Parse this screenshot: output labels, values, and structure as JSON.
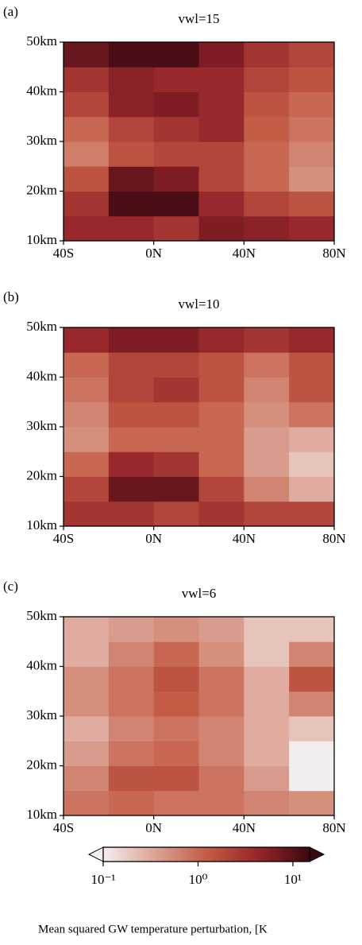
{
  "chart_data": [
    {
      "type": "heatmap",
      "panel_label": "(a)",
      "title": "vwl=15",
      "x": [
        -30,
        -10,
        10,
        30,
        50,
        70
      ],
      "y": [
        12.5,
        17.5,
        22.5,
        27.5,
        32.5,
        37.5,
        42.5,
        47.5
      ],
      "z": [
        [
          4,
          4,
          3,
          6,
          5,
          4
        ],
        [
          3,
          12,
          12,
          4,
          2,
          1.5
        ],
        [
          1.5,
          8,
          6,
          2,
          1,
          0.5
        ],
        [
          0.7,
          1.5,
          2,
          2,
          1,
          0.6
        ],
        [
          1,
          2,
          3,
          4,
          1.2,
          0.8
        ],
        [
          2,
          5,
          6,
          4,
          1.5,
          1
        ],
        [
          3,
          5,
          4,
          4,
          2,
          1.5
        ],
        [
          8,
          12,
          12,
          6,
          3,
          2
        ]
      ],
      "xlim": [
        -40,
        80
      ],
      "ylim": [
        10,
        50
      ],
      "xticks": [
        {
          "value": -40,
          "label": "40S"
        },
        {
          "value": 0,
          "label": "0N"
        },
        {
          "value": 40,
          "label": "40N"
        },
        {
          "value": 80,
          "label": "80N"
        }
      ],
      "yticks": [
        {
          "value": 10,
          "label": "10km"
        },
        {
          "value": 20,
          "label": "20km"
        },
        {
          "value": 30,
          "label": "30km"
        },
        {
          "value": 40,
          "label": "40km"
        },
        {
          "value": 50,
          "label": "50km"
        }
      ]
    },
    {
      "type": "heatmap",
      "panel_label": "(b)",
      "title": "vwl=10",
      "x": [
        -30,
        -10,
        10,
        30,
        50,
        70
      ],
      "y": [
        12.5,
        17.5,
        22.5,
        27.5,
        32.5,
        37.5,
        42.5,
        47.5
      ],
      "z": [
        [
          3,
          3,
          2,
          3,
          2,
          2
        ],
        [
          2,
          8,
          8,
          2,
          0.6,
          0.3
        ],
        [
          1,
          4,
          3,
          1,
          0.4,
          0.2
        ],
        [
          0.5,
          1,
          1,
          1,
          0.4,
          0.3
        ],
        [
          0.6,
          1.5,
          1.5,
          1,
          0.5,
          0.8
        ],
        [
          0.8,
          2,
          3,
          1.5,
          0.6,
          1.5
        ],
        [
          1,
          2,
          2,
          1.5,
          0.8,
          1.5
        ],
        [
          4,
          6,
          6,
          4,
          3,
          4
        ]
      ],
      "xlim": [
        -40,
        80
      ],
      "ylim": [
        10,
        50
      ],
      "xticks": [
        {
          "value": -40,
          "label": "40S"
        },
        {
          "value": 0,
          "label": "0N"
        },
        {
          "value": 40,
          "label": "40N"
        },
        {
          "value": 80,
          "label": "80N"
        }
      ],
      "yticks": [
        {
          "value": 10,
          "label": "10km"
        },
        {
          "value": 20,
          "label": "20km"
        },
        {
          "value": 30,
          "label": "30km"
        },
        {
          "value": 40,
          "label": "40km"
        },
        {
          "value": 50,
          "label": "50km"
        }
      ]
    },
    {
      "type": "heatmap",
      "panel_label": "(c)",
      "title": "vwl=6",
      "x": [
        -30,
        -10,
        10,
        30,
        50,
        70
      ],
      "y": [
        12.5,
        17.5,
        22.5,
        27.5,
        32.5,
        37.5,
        42.5,
        47.5
      ],
      "z": [
        [
          0.8,
          1,
          0.8,
          0.8,
          0.6,
          0.5
        ],
        [
          0.6,
          1.5,
          1.5,
          0.8,
          0.4,
          0.1
        ],
        [
          0.4,
          0.8,
          1,
          0.6,
          0.3,
          0.1
        ],
        [
          0.3,
          0.6,
          0.8,
          0.6,
          0.3,
          0.2
        ],
        [
          0.5,
          0.8,
          1.2,
          0.8,
          0.3,
          0.6
        ],
        [
          0.5,
          0.8,
          1.5,
          0.8,
          0.3,
          1.5
        ],
        [
          0.3,
          0.6,
          1,
          0.5,
          0.2,
          0.6
        ],
        [
          0.3,
          0.4,
          0.5,
          0.4,
          0.2,
          0.2
        ]
      ],
      "xlim": [
        -40,
        80
      ],
      "ylim": [
        10,
        50
      ],
      "xticks": [
        {
          "value": -40,
          "label": "40S"
        },
        {
          "value": 0,
          "label": "0N"
        },
        {
          "value": 40,
          "label": "40N"
        },
        {
          "value": 80,
          "label": "80N"
        }
      ],
      "yticks": [
        {
          "value": 10,
          "label": "10km"
        },
        {
          "value": 20,
          "label": "20km"
        },
        {
          "value": 30,
          "label": "30km"
        },
        {
          "value": 40,
          "label": "40km"
        },
        {
          "value": 50,
          "label": "50km"
        }
      ]
    },
    {
      "type": "colorbar",
      "label": "Mean squared GW temperature perturbation, [K",
      "clim": [
        0.1,
        15
      ],
      "log": true,
      "extend": "both",
      "colormap": [
        "#f3eeee",
        "#dca394",
        "#c45c45",
        "#96252b",
        "#3c0911"
      ],
      "ticks": [
        {
          "value": 0.1,
          "label": "10⁻¹"
        },
        {
          "value": 1,
          "label": "10⁰"
        },
        {
          "value": 10,
          "label": "10¹"
        }
      ]
    }
  ]
}
